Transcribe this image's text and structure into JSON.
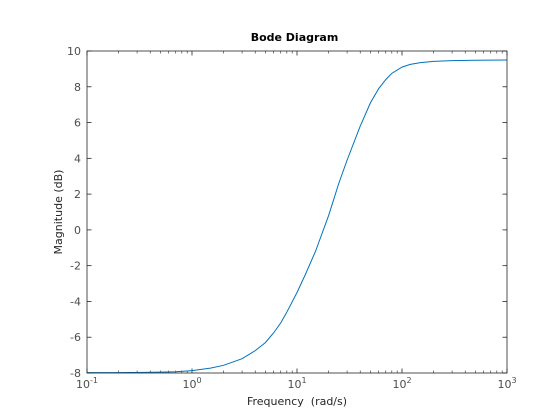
{
  "chart_data": {
    "type": "line",
    "title": "Bode Diagram",
    "xlabel": "Frequency  (rad/s)",
    "ylabel": "Magnitude (dB)",
    "xscale": "log",
    "xlim": [
      0.1,
      1000
    ],
    "ylim": [
      -8,
      10
    ],
    "grid": false,
    "x_ticks": [
      {
        "base": "10",
        "exp": "-1"
      },
      {
        "base": "10",
        "exp": "0"
      },
      {
        "base": "10",
        "exp": "1"
      },
      {
        "base": "10",
        "exp": "2"
      },
      {
        "base": "10",
        "exp": "3"
      }
    ],
    "y_ticks": [
      -8,
      -6,
      -4,
      -2,
      0,
      2,
      4,
      6,
      8,
      10
    ],
    "series": [
      {
        "color": "#0072bd",
        "x": [
          0.1,
          0.2,
          0.3,
          0.5,
          0.7,
          1,
          1.5,
          2,
          3,
          4,
          5,
          6,
          7,
          8,
          10,
          12,
          15,
          20,
          25,
          30,
          40,
          50,
          60,
          70,
          80,
          100,
          120,
          150,
          200,
          300,
          500,
          700,
          1000
        ],
        "y": [
          -7.98,
          -7.98,
          -7.97,
          -7.95,
          -7.93,
          -7.87,
          -7.73,
          -7.57,
          -7.2,
          -6.75,
          -6.3,
          -5.75,
          -5.2,
          -4.6,
          -3.5,
          -2.5,
          -1.2,
          0.8,
          2.6,
          3.9,
          5.8,
          7.1,
          7.9,
          8.4,
          8.75,
          9.1,
          9.25,
          9.35,
          9.42,
          9.46,
          9.48,
          9.49,
          9.5
        ]
      }
    ]
  }
}
